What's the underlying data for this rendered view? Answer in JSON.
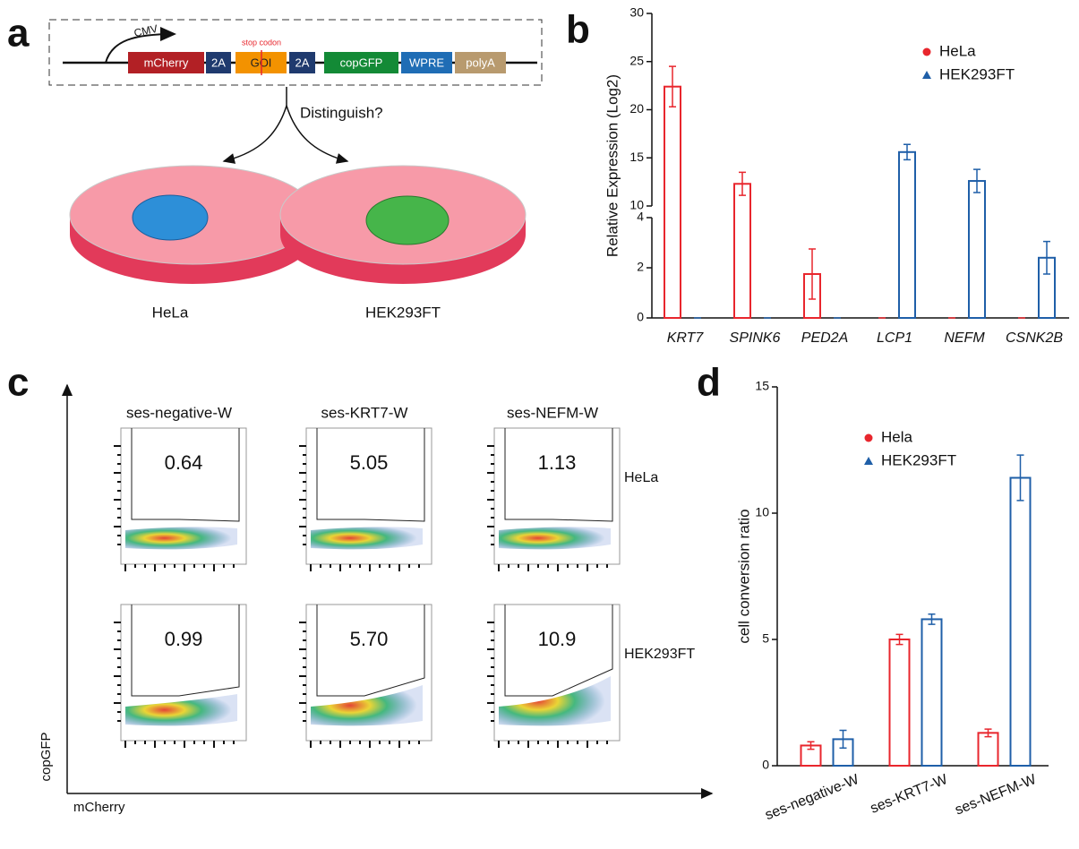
{
  "panel_labels": [
    "a",
    "b",
    "c",
    "d"
  ],
  "construct": {
    "promoter": "CMV",
    "elements": [
      "mCherry",
      "2A",
      "GOI",
      "2A",
      "copGFP",
      "WPRE",
      "polyA"
    ],
    "stop_codon": "stop codon",
    "question": "Distinguish?",
    "dishes": [
      "HeLa",
      "HEK293FT"
    ]
  },
  "flow": {
    "columns": [
      "ses-negative-W",
      "ses-KRT7-W",
      "ses-NEFM-W"
    ],
    "rows": [
      "HeLa",
      "HEK293FT"
    ],
    "gates": [
      [
        "0.64",
        "5.05",
        "1.13"
      ],
      [
        "0.99",
        "5.70",
        "10.9"
      ]
    ],
    "x_label": "mCherry",
    "y_label": "copGFP"
  },
  "chart_data": [
    {
      "type": "bar",
      "ylabel": "Relative Expression (Log2)",
      "categories": [
        "KRT7",
        "SPINK6",
        "PED2A",
        "LCP1",
        "NEFM",
        "CSNK2B"
      ],
      "series": [
        {
          "name": "HeLa",
          "color": "#e8262d",
          "marker": "circle",
          "values": [
            22.4,
            12.3,
            1.75,
            0,
            0,
            0
          ],
          "errors": [
            2.1,
            1.2,
            1.0,
            0,
            0,
            0
          ]
        },
        {
          "name": "HEK293FT",
          "color": "#1f5fa8",
          "marker": "triangle",
          "values": [
            0,
            0,
            0,
            15.6,
            12.6,
            2.4
          ],
          "errors": [
            0,
            0,
            0,
            0.8,
            1.2,
            0.65
          ]
        }
      ],
      "ylim": [
        0,
        30
      ],
      "axis_break": [
        4,
        10
      ],
      "yticks": [
        0,
        2,
        4,
        10,
        15,
        20,
        25,
        30
      ],
      "legend": "upper right"
    },
    {
      "type": "bar",
      "ylabel": "cell conversion ratio",
      "categories": [
        "ses-negative-W",
        "ses-KRT7-W",
        "ses-NEFM-W"
      ],
      "series": [
        {
          "name": "Hela",
          "color": "#e8262d",
          "marker": "circle",
          "values": [
            0.8,
            5.0,
            1.3
          ],
          "errors": [
            0.15,
            0.2,
            0.15
          ]
        },
        {
          "name": "HEK293FT",
          "color": "#1f5fa8",
          "marker": "triangle",
          "values": [
            1.05,
            5.8,
            11.4
          ],
          "errors": [
            0.35,
            0.2,
            0.9
          ]
        }
      ],
      "ylim": [
        0,
        15
      ],
      "yticks": [
        0,
        5,
        10,
        15
      ],
      "legend": "upper left"
    }
  ]
}
